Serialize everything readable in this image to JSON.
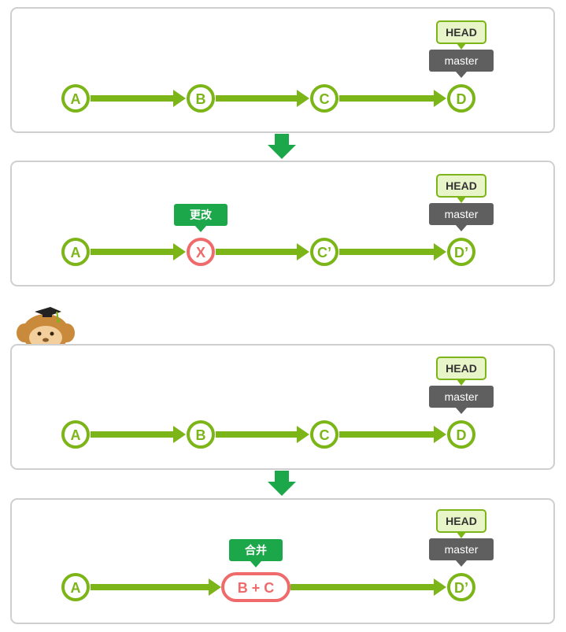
{
  "colors": {
    "commit_green": "#7cb518",
    "changed_red": "#ef6b6b",
    "note_green": "#1ca84a",
    "branch_gray": "#5f5f5f",
    "head_fill": "#e8f5c8",
    "panel_border": "#cfcfcf"
  },
  "labels": {
    "head": "HEAD",
    "master": "master"
  },
  "panels": [
    {
      "commits": [
        {
          "label": "A",
          "changed": false
        },
        {
          "label": "B",
          "changed": false
        },
        {
          "label": "C",
          "changed": false
        },
        {
          "label": "D",
          "changed": false
        }
      ],
      "note": "",
      "note_commit_index": -1
    },
    {
      "commits": [
        {
          "label": "A",
          "changed": false
        },
        {
          "label": "X",
          "changed": true
        },
        {
          "label": "C’",
          "changed": false
        },
        {
          "label": "D’",
          "changed": false
        }
      ],
      "note": "更改",
      "note_commit_index": 1
    },
    {
      "commits": [
        {
          "label": "A",
          "changed": false
        },
        {
          "label": "B",
          "changed": false
        },
        {
          "label": "C",
          "changed": false
        },
        {
          "label": "D",
          "changed": false
        }
      ],
      "note": "",
      "note_commit_index": -1
    },
    {
      "commits": [
        {
          "label": "A",
          "changed": false
        },
        {
          "label": "B + C",
          "changed": true,
          "wide": true
        },
        {
          "label": "D’",
          "changed": false
        }
      ],
      "note": "合并",
      "note_commit_index": 1
    }
  ],
  "transitions": [
    {
      "from_panel": 0,
      "to_panel": 1,
      "icon": "down-arrow-icon"
    },
    {
      "from_panel": 2,
      "to_panel": 3,
      "icon": "down-arrow-icon"
    }
  ],
  "mascot": {
    "icon": "monkey-graduate-mascot-icon"
  }
}
